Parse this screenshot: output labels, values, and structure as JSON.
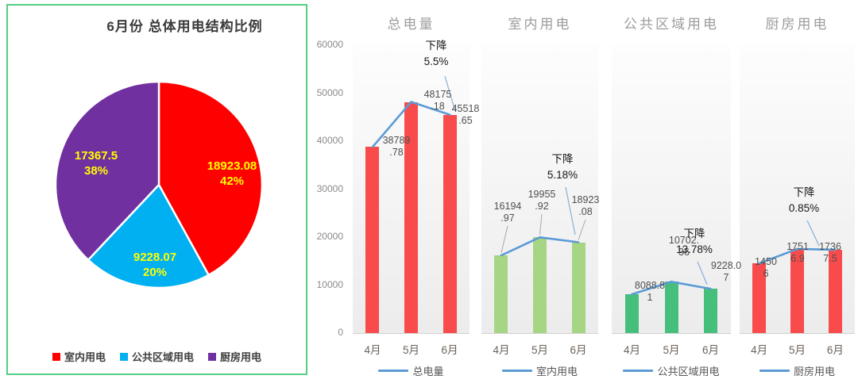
{
  "chart_data": [
    {
      "type": "pie",
      "title": "6月份 总体用电结构比例",
      "legend_position": "bottom",
      "panel_border_color": "#53cf82",
      "slices": [
        {
          "name": "室内用电",
          "value": 18923.08,
          "percent": 42,
          "color": "#ff0000",
          "label_lines": [
            "18923.08",
            "42%"
          ],
          "label_color": "#ffff00"
        },
        {
          "name": "公共区域用电",
          "value": 9228.07,
          "percent": 20,
          "color": "#00b0f0",
          "label_lines": [
            "9228.07",
            "20%"
          ],
          "label_color": "#ffff00"
        },
        {
          "name": "厨房用电",
          "value": 17367.5,
          "percent": 38,
          "color": "#7030a0",
          "label_lines": [
            "17367.5",
            "38%"
          ],
          "label_color": "#ffff00"
        }
      ]
    },
    {
      "type": "bar",
      "title": "总电量",
      "categories": [
        "4月",
        "5月",
        "6月"
      ],
      "values": [
        38789.78,
        48175.18,
        45518.65
      ],
      "value_labels": [
        [
          "38789",
          ".78"
        ],
        [
          "48175",
          ".18"
        ],
        [
          "45518",
          ".65"
        ]
      ],
      "annotation_lines": [
        "下降",
        "5.5%"
      ],
      "series_legend": "总电量",
      "bar_color": "#f94b4b",
      "line_color": "#5b9bd5",
      "ylim": [
        0,
        60000
      ],
      "yticks": [
        "60000",
        "50000",
        "40000",
        "30000",
        "20000",
        "10000",
        "0"
      ],
      "show_y_axis": true,
      "grid": false,
      "legend_position": "bottom"
    },
    {
      "type": "bar",
      "title": "室内用电",
      "categories": [
        "4月",
        "5月",
        "6月"
      ],
      "values": [
        16194.97,
        19955.92,
        18923.08
      ],
      "value_labels": [
        [
          "16194",
          ".97"
        ],
        [
          "19955",
          ".92"
        ],
        [
          "18923",
          ".08"
        ]
      ],
      "annotation_lines": [
        "下降",
        "5.18%"
      ],
      "series_legend": "室内用电",
      "bar_color": "#a6d583",
      "line_color": "#5b9bd5",
      "ylim": [
        0,
        60000
      ],
      "show_y_axis": false,
      "grid": false,
      "legend_position": "bottom"
    },
    {
      "type": "bar",
      "title": "公共区域用电",
      "categories": [
        "4月",
        "5月",
        "6月"
      ],
      "values": [
        8088.81,
        10702.36,
        9228.07
      ],
      "value_labels": [
        [
          "8088.8",
          "1"
        ],
        [
          "10702.",
          "36"
        ],
        [
          "9228.0",
          "7"
        ]
      ],
      "annotation_lines": [
        "下降",
        "13.78%"
      ],
      "series_legend": "公共区域用电",
      "bar_color": "#46bf7d",
      "line_color": "#5b9bd5",
      "ylim": [
        0,
        60000
      ],
      "show_y_axis": false,
      "grid": false,
      "legend_position": "bottom"
    },
    {
      "type": "bar",
      "title": "厨房用电",
      "categories": [
        "4月",
        "5月",
        "6月"
      ],
      "values": [
        14506,
        17516.9,
        17367.5
      ],
      "value_labels": [
        [
          "1450",
          "6"
        ],
        [
          "1751",
          "6.9"
        ],
        [
          "1736",
          "7.5"
        ]
      ],
      "annotation_lines": [
        "下降",
        "0.85%"
      ],
      "series_legend": "厨房用电",
      "bar_color": "#f94b4b",
      "line_color": "#5b9bd5",
      "ylim": [
        0,
        60000
      ],
      "show_y_axis": false,
      "grid": false,
      "legend_position": "bottom"
    }
  ]
}
